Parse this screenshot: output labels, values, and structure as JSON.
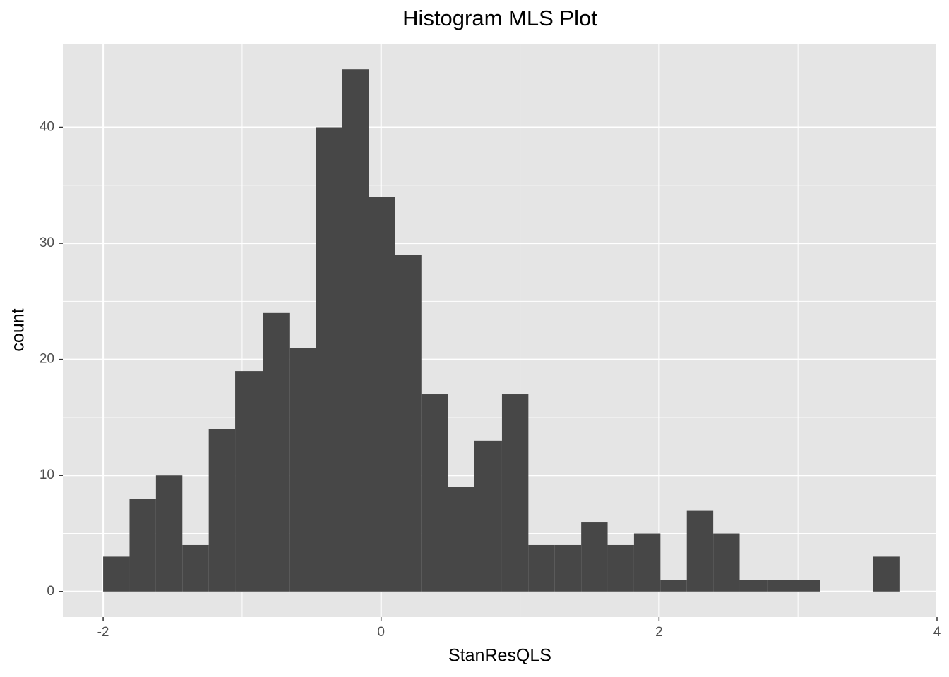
{
  "chart_data": {
    "type": "histogram",
    "title": "Histogram MLS Plot",
    "x_label": "StanResQLS",
    "y_label": "count",
    "bins": [
      -2,
      -1.81,
      -1.62,
      -1.43,
      -1.24,
      -1.05,
      -0.85,
      -0.66,
      -0.47,
      -0.28,
      -0.09,
      0.1,
      0.29,
      0.48,
      0.67,
      0.87,
      1.06,
      1.25,
      1.44,
      1.63,
      1.82,
      2.01,
      2.2,
      2.39,
      2.58,
      2.78,
      2.97,
      3.16,
      3.35,
      3.54,
      3.73
    ],
    "counts": [
      3,
      8,
      10,
      4,
      14,
      19,
      24,
      21,
      40,
      45,
      34,
      29,
      17,
      9,
      13,
      17,
      4,
      4,
      6,
      4,
      5,
      1,
      7,
      5,
      1,
      1,
      1,
      0,
      0,
      3
    ],
    "color": "#474747",
    "panel_color": "#e5e5e5",
    "grid": true,
    "xlim": [
      -2.29,
      4.0
    ],
    "xticks": [
      -2,
      0,
      2,
      4
    ],
    "ylim": [
      -2.2,
      47.2
    ],
    "yticks": [
      0,
      10,
      20,
      30,
      40
    ]
  }
}
